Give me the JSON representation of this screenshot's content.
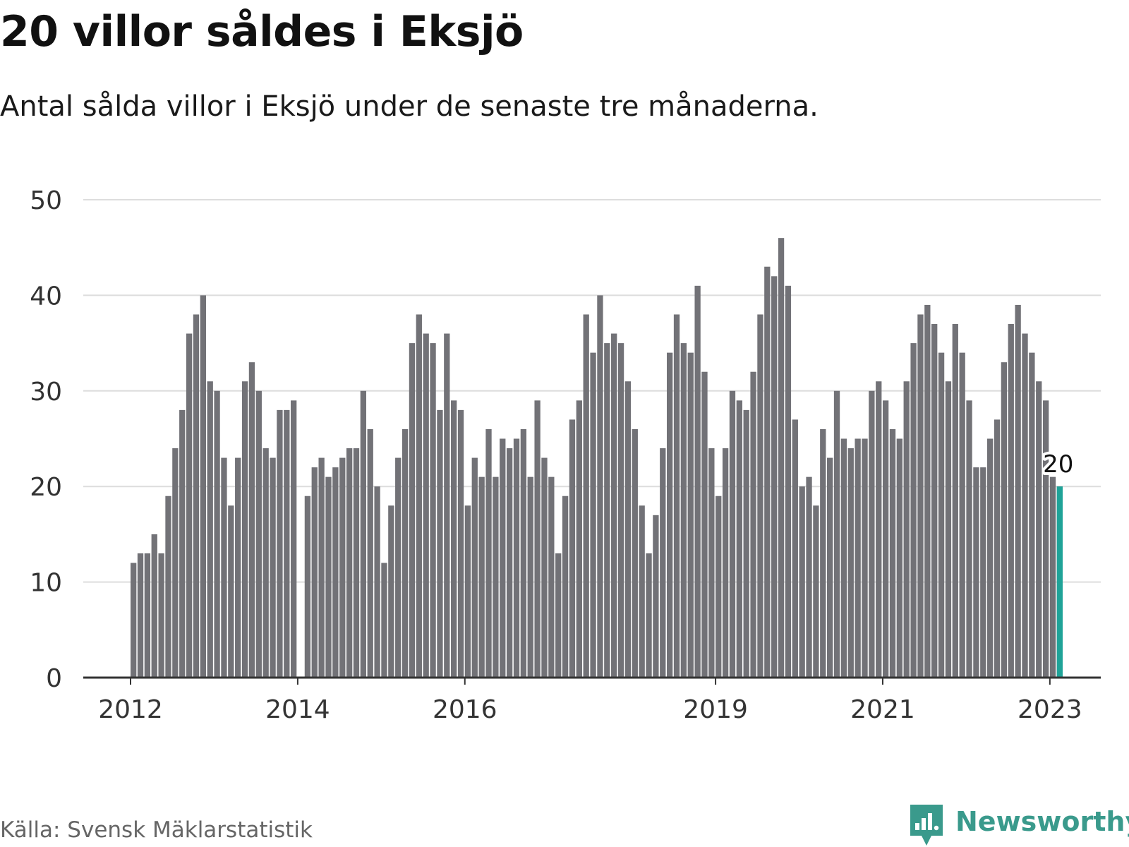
{
  "title": "20 villor såldes i Eksjö",
  "subtitle": "Antal sålda villor i Eksjö under de senaste tre månaderna.",
  "source": "Källa: Svensk Mäklarstatistik",
  "brand": {
    "name": "Newsworthy",
    "icon": "newsworthy-logo-icon",
    "color": "#3a9a8c"
  },
  "colors": {
    "bar": "#727277",
    "highlight": "#1fa398",
    "grid": "#dddddd",
    "axis": "#333333"
  },
  "chart_data": {
    "type": "bar",
    "title": "20 villor såldes i Eksjö",
    "xlabel": "",
    "ylabel": "",
    "ylim": [
      0,
      50
    ],
    "yticks": [
      0,
      10,
      20,
      30,
      40,
      50
    ],
    "grid": true,
    "x_start": "2012-01",
    "x_tick_labels": [
      {
        "label": "2012",
        "index": 0
      },
      {
        "label": "2014",
        "index": 24
      },
      {
        "label": "2016",
        "index": 48
      },
      {
        "label": "2019",
        "index": 84
      },
      {
        "label": "2021",
        "index": 108
      },
      {
        "label": "2023",
        "index": 132
      }
    ],
    "values": [
      12,
      13,
      13,
      15,
      13,
      19,
      24,
      28,
      36,
      38,
      40,
      31,
      30,
      23,
      18,
      23,
      31,
      33,
      30,
      24,
      23,
      28,
      28,
      29,
      null,
      19,
      22,
      23,
      21,
      22,
      23,
      24,
      24,
      30,
      26,
      20,
      12,
      18,
      23,
      26,
      35,
      38,
      36,
      35,
      28,
      36,
      29,
      28,
      18,
      23,
      21,
      26,
      21,
      25,
      24,
      25,
      26,
      21,
      29,
      23,
      21,
      13,
      19,
      27,
      29,
      38,
      34,
      40,
      35,
      36,
      35,
      31,
      26,
      18,
      13,
      17,
      24,
      34,
      38,
      35,
      34,
      41,
      32,
      24,
      19,
      24,
      30,
      29,
      28,
      32,
      38,
      43,
      42,
      46,
      41,
      27,
      20,
      21,
      18,
      26,
      23,
      30,
      25,
      24,
      25,
      25,
      30,
      31,
      29,
      26,
      25,
      31,
      35,
      38,
      39,
      37,
      34,
      31,
      37,
      34,
      29,
      22,
      22,
      25,
      27,
      33,
      37,
      39,
      36,
      34,
      31,
      29,
      21,
      20
    ],
    "highlight": {
      "index": 133,
      "value": 20,
      "label": "20"
    }
  }
}
